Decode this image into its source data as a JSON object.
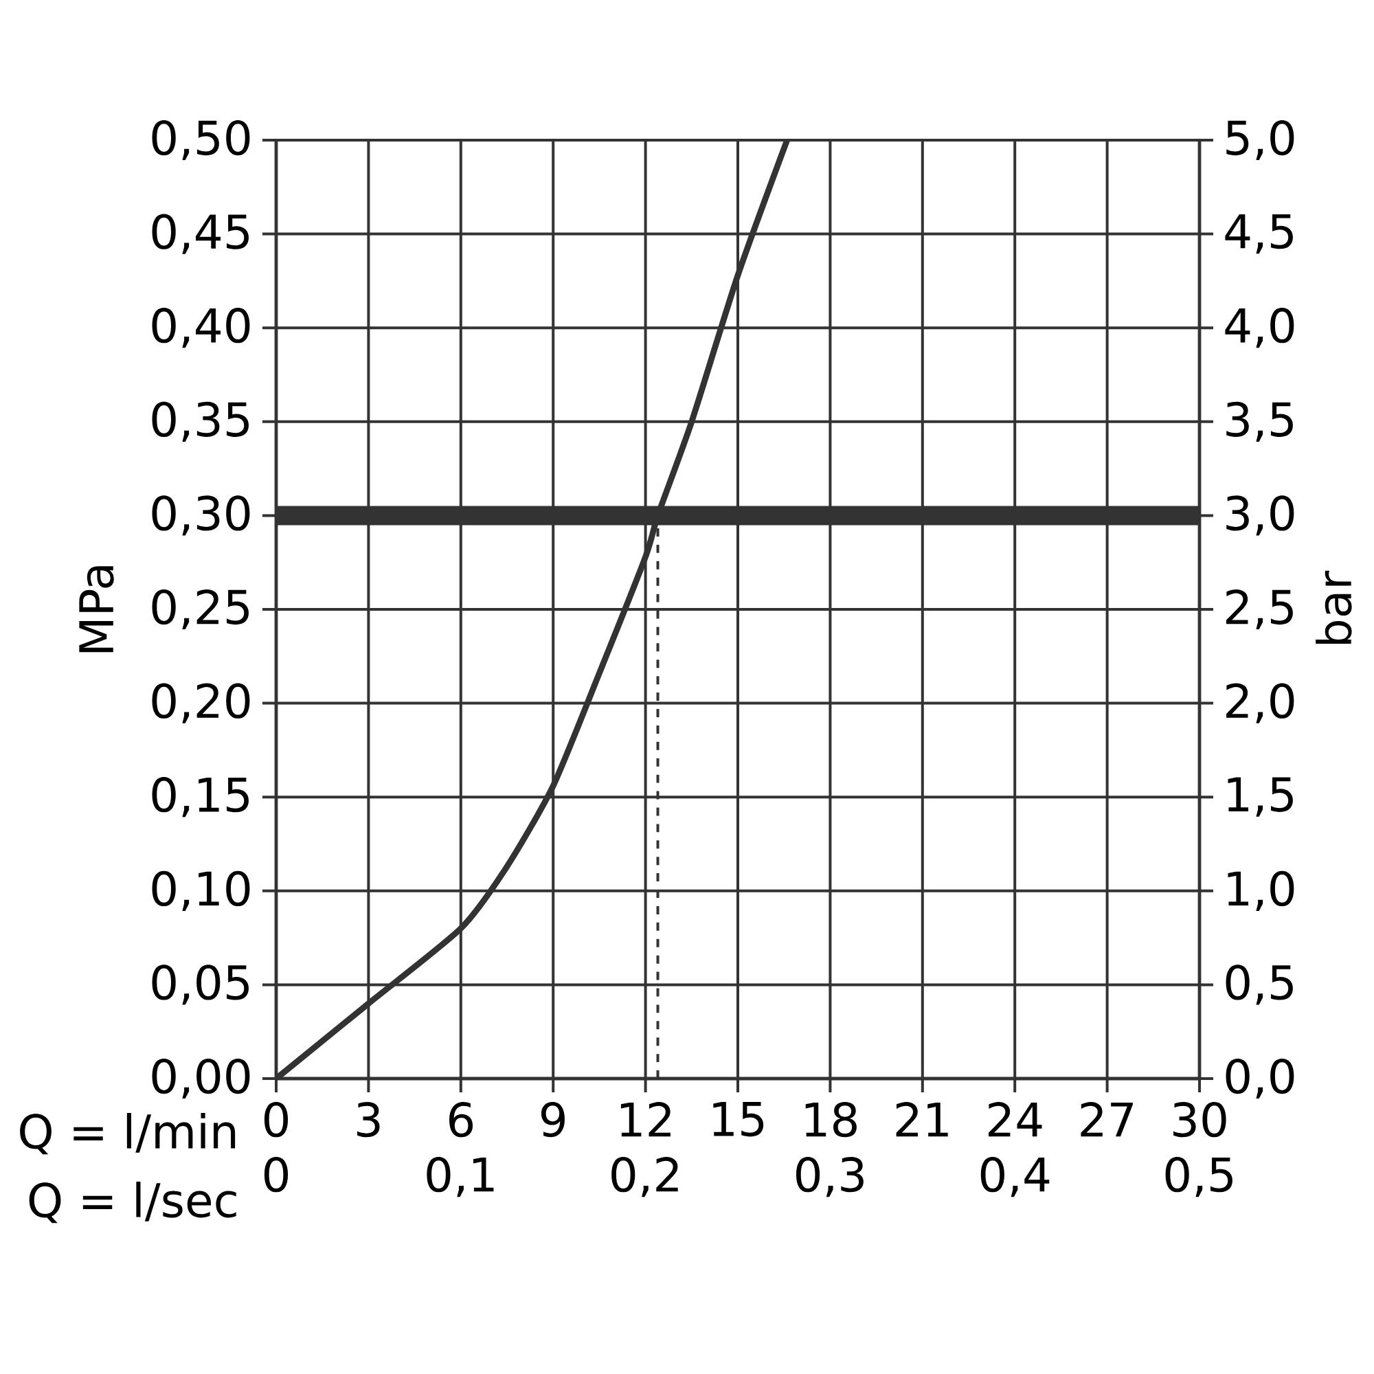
{
  "chart_data": {
    "type": "line",
    "xlabel": "Q = l/min",
    "x2label": "Q = l/sec",
    "ylabel": "MPa",
    "y2label": "bar",
    "xlim": [
      0,
      30
    ],
    "xticks": [
      0,
      3,
      6,
      9,
      12,
      15,
      18,
      21,
      24,
      27,
      30
    ],
    "x2lim": [
      0,
      0.5
    ],
    "x2ticks": [
      0,
      {
        "value": 0.1,
        "label": "0,1"
      },
      {
        "value": 0.2,
        "label": "0,2"
      },
      {
        "value": 0.3,
        "label": "0,3"
      },
      {
        "value": 0.4,
        "label": "0,4"
      },
      {
        "value": 0.5,
        "label": "0,5"
      }
    ],
    "ylim": [
      0,
      0.5
    ],
    "yticks": [
      {
        "value": 0,
        "label": "0,00"
      },
      {
        "value": 0.05,
        "label": "0,05"
      },
      {
        "value": 0.1,
        "label": "0,10"
      },
      {
        "value": 0.15,
        "label": "0,15"
      },
      {
        "value": 0.2,
        "label": "0,20"
      },
      {
        "value": 0.25,
        "label": "0,25"
      },
      {
        "value": 0.3,
        "label": "0,30"
      },
      {
        "value": 0.35,
        "label": "0,35"
      },
      {
        "value": 0.4,
        "label": "0,40"
      },
      {
        "value": 0.45,
        "label": "0,45"
      },
      {
        "value": 0.5,
        "label": "0,50"
      }
    ],
    "y2lim": [
      0,
      5
    ],
    "y2ticks": [
      {
        "value": 0,
        "label": "0,0"
      },
      {
        "value": 0.5,
        "label": "0,5"
      },
      {
        "value": 1,
        "label": "1,0"
      },
      {
        "value": 1.5,
        "label": "1,5"
      },
      {
        "value": 2,
        "label": "2,0"
      },
      {
        "value": 2.5,
        "label": "2,5"
      },
      {
        "value": 3,
        "label": "3,0"
      },
      {
        "value": 3.5,
        "label": "3,5"
      },
      {
        "value": 4,
        "label": "4,0"
      },
      {
        "value": 4.5,
        "label": "4,5"
      },
      {
        "value": 5,
        "label": "5,0"
      }
    ],
    "grid": true,
    "marker": "none",
    "line_style": "solid",
    "series": [
      {
        "color": "#333333",
        "x": [
          0,
          3,
          6,
          7.5,
          9,
          10.5,
          12,
          12.4,
          13.5,
          15,
          16.6
        ],
        "values": [
          0,
          0.04,
          0.08,
          0.113,
          0.156,
          0.216,
          0.278,
          0.3,
          0.35,
          0.428,
          0.5
        ]
      }
    ],
    "ref_lines": [
      {
        "axis": "y",
        "value": 0.3,
        "color": "#333333"
      },
      {
        "axis": "x",
        "value": 12.4,
        "line_style": "dashed",
        "color": "#333333"
      }
    ]
  }
}
